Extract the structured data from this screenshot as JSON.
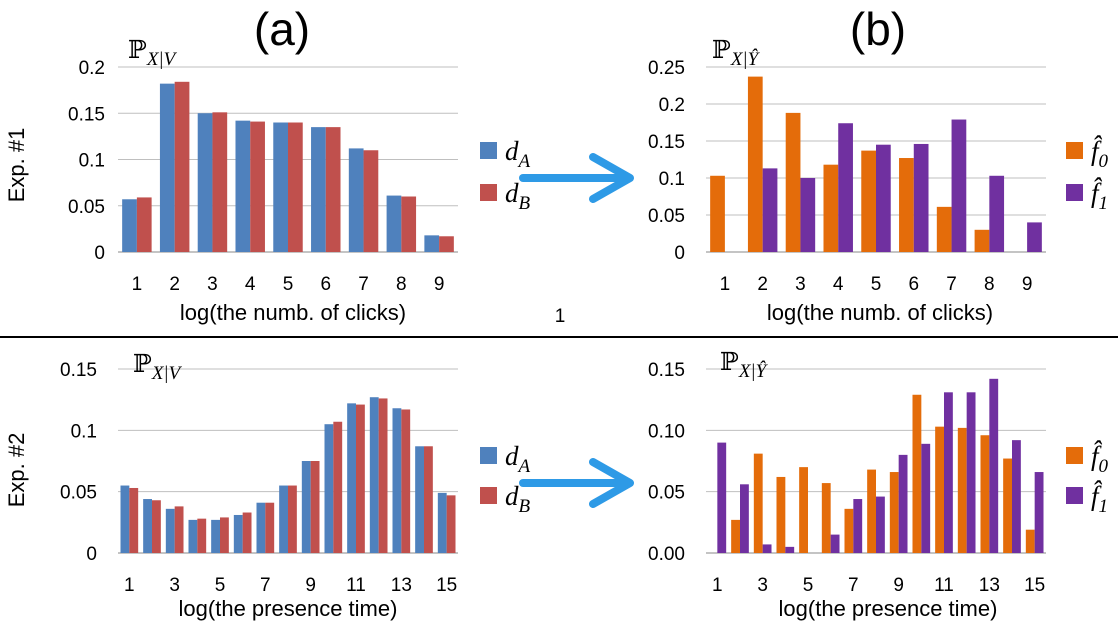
{
  "panel_labels": {
    "a": "(a)",
    "b": "(b)"
  },
  "row_labels": {
    "exp1": "Exp. #1",
    "exp2": "Exp. #2"
  },
  "stray_text": "1",
  "annotation_symbol": "ℙ",
  "colors": {
    "d_A": "#4f81bd",
    "d_B": "#c0504d",
    "f0": "#e46c0a",
    "f1": "#7030a0",
    "arrow": "#2e9ae6",
    "grid": "#bfbfbf",
    "divider": "#000000"
  },
  "icons": {
    "arrow": "right-arrow-icon"
  },
  "chart_data": [
    {
      "id": "exp1a",
      "type": "bar",
      "annotation": {
        "sub": "X|V"
      },
      "xlabel": "log(the numb. of clicks)",
      "ylabel": "",
      "categories": [
        "1",
        "2",
        "3",
        "4",
        "5",
        "6",
        "7",
        "8",
        "9"
      ],
      "ylim": [
        0,
        0.2
      ],
      "yticks": [
        0,
        0.05,
        0.1,
        0.15,
        0.2
      ],
      "ytick_labels": [
        "0",
        "0.05",
        "0.1",
        "0.15",
        "0.2"
      ],
      "grid": true,
      "legend_position": "right",
      "series": [
        {
          "name": "d_A",
          "legend_base": "d",
          "legend_sub": "A",
          "color": "#4f81bd",
          "values": [
            0.057,
            0.182,
            0.15,
            0.142,
            0.14,
            0.135,
            0.112,
            0.061,
            0.018
          ]
        },
        {
          "name": "d_B",
          "legend_base": "d",
          "legend_sub": "B",
          "color": "#c0504d",
          "values": [
            0.059,
            0.184,
            0.151,
            0.141,
            0.14,
            0.135,
            0.11,
            0.06,
            0.017
          ]
        }
      ]
    },
    {
      "id": "exp1b",
      "type": "bar",
      "annotation": {
        "sub": "X|Ŷ"
      },
      "xlabel": "log(the numb. of clicks)",
      "ylabel": "",
      "categories": [
        "1",
        "2",
        "3",
        "4",
        "5",
        "6",
        "7",
        "8",
        "9"
      ],
      "ylim": [
        0,
        0.25
      ],
      "yticks": [
        0,
        0.05,
        0.1,
        0.15,
        0.2,
        0.25
      ],
      "ytick_labels": [
        "0",
        "0.05",
        "0.1",
        "0.15",
        "0.2",
        "0.25"
      ],
      "grid": true,
      "legend_position": "right",
      "series": [
        {
          "name": "f̂_0",
          "legend_base": "f̂",
          "legend_sub": "0",
          "color": "#e46c0a",
          "values": [
            0.103,
            0.237,
            0.188,
            0.118,
            0.137,
            0.127,
            0.061,
            0.03,
            0.0
          ]
        },
        {
          "name": "f̂_1",
          "legend_base": "f̂",
          "legend_sub": "1",
          "color": "#7030a0",
          "values": [
            0.0,
            0.113,
            0.1,
            0.174,
            0.145,
            0.146,
            0.179,
            0.103,
            0.04
          ]
        }
      ]
    },
    {
      "id": "exp2a",
      "type": "bar",
      "annotation": {
        "sub": "X|V"
      },
      "xlabel": "log(the presence time)",
      "ylabel": "",
      "categories": [
        "1",
        "2",
        "3",
        "4",
        "5",
        "6",
        "7",
        "8",
        "9",
        "10",
        "11",
        "12",
        "13",
        "14",
        "15"
      ],
      "xtick_every": 2,
      "ylim": [
        0,
        0.15
      ],
      "yticks": [
        0,
        0.05,
        0.1,
        0.15
      ],
      "ytick_labels": [
        "0",
        "0.05",
        "0.1",
        "0.15"
      ],
      "grid": true,
      "legend_position": "right",
      "series": [
        {
          "name": "d_A",
          "legend_base": "d",
          "legend_sub": "A",
          "color": "#4f81bd",
          "values": [
            0.055,
            0.044,
            0.036,
            0.027,
            0.027,
            0.031,
            0.041,
            0.055,
            0.075,
            0.105,
            0.122,
            0.127,
            0.118,
            0.087,
            0.049
          ]
        },
        {
          "name": "d_B",
          "legend_base": "d",
          "legend_sub": "B",
          "color": "#c0504d",
          "values": [
            0.053,
            0.043,
            0.038,
            0.028,
            0.029,
            0.033,
            0.041,
            0.055,
            0.075,
            0.107,
            0.121,
            0.126,
            0.117,
            0.087,
            0.047
          ]
        }
      ]
    },
    {
      "id": "exp2b",
      "type": "bar",
      "annotation": {
        "sub": "X|Ŷ"
      },
      "xlabel": "log(the presence time)",
      "ylabel": "",
      "categories": [
        "1",
        "2",
        "3",
        "4",
        "5",
        "6",
        "7",
        "8",
        "9",
        "10",
        "11",
        "12",
        "13",
        "14",
        "15"
      ],
      "xtick_every": 2,
      "ylim": [
        0,
        0.15
      ],
      "yticks": [
        0,
        0.05,
        0.1,
        0.15
      ],
      "ytick_labels": [
        "0.00",
        "0.05",
        "0.10",
        "0.15"
      ],
      "grid": true,
      "legend_position": "right",
      "series": [
        {
          "name": "f̂_0",
          "legend_base": "f̂",
          "legend_sub": "0",
          "color": "#e46c0a",
          "values": [
            0.0,
            0.027,
            0.081,
            0.062,
            0.07,
            0.057,
            0.036,
            0.068,
            0.066,
            0.129,
            0.103,
            0.102,
            0.096,
            0.077,
            0.019
          ]
        },
        {
          "name": "f̂_1",
          "legend_base": "f̂",
          "legend_sub": "1",
          "color": "#7030a0",
          "values": [
            0.09,
            0.056,
            0.007,
            0.005,
            0.0,
            0.015,
            0.044,
            0.046,
            0.08,
            0.089,
            0.131,
            0.131,
            0.142,
            0.092,
            0.066
          ]
        }
      ]
    }
  ]
}
